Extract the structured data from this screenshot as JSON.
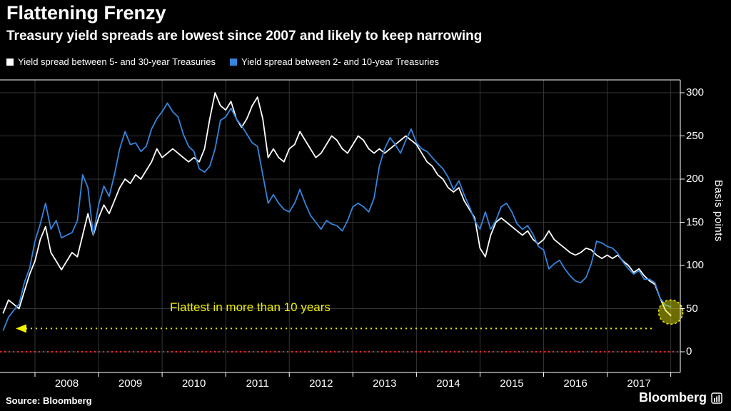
{
  "header": {
    "title": "Flattening Frenzy",
    "subtitle": "Treasury yield spreads are lowest since 2007 and likely to keep narrowing"
  },
  "legend": {
    "items": [
      {
        "label": "Yield spread between 5- and 30-year Treasuries",
        "color": "#ffffff"
      },
      {
        "label": "Yield spread between 2- and 10-year Treasuries",
        "color": "#3585dc"
      }
    ]
  },
  "footer": {
    "source": "Source: Bloomberg",
    "brand": "Bloomberg",
    "brand_icon": "bar-chart-icon"
  },
  "chart_data": {
    "type": "line",
    "title": "Flattening Frenzy",
    "subtitle": "Treasury yield spreads are lowest since 2007 and likely to keep narrowing",
    "xlabel": "",
    "ylabel": "Basis points",
    "x_unit": "year (monthly samples, Jul 2007 - Jan 2018)",
    "x_start": 2007.5,
    "x_step": 0.0833333,
    "xlim": [
      2007.45,
      2018.15
    ],
    "ylim": [
      -24,
      315
    ],
    "y_ticks": [
      0,
      50,
      100,
      150,
      200,
      250,
      300
    ],
    "x_gridlines": [
      2008,
      2009,
      2010,
      2011,
      2012,
      2013,
      2014,
      2015,
      2016,
      2017,
      2018
    ],
    "x_tick_labels": [
      2008,
      2009,
      2010,
      2011,
      2012,
      2013,
      2014,
      2015,
      2016,
      2017
    ],
    "grid": true,
    "grid_color": "#343434",
    "axis_color": "#ffffff",
    "legend_position": "top-left",
    "zero_line": {
      "y": 0,
      "color": "#ff2a2a",
      "style": "dotted"
    },
    "annotation": {
      "text": "Flattest in more than 10 years",
      "color": "#f0f000",
      "arrow_bps": 27,
      "highlight": {
        "x": 2018.0,
        "y_bps": 46
      }
    },
    "series": [
      {
        "name": "Yield spread between 5- and 30-year Treasuries",
        "color": "#ffffff",
        "values": [
          45,
          60,
          55,
          50,
          70,
          90,
          105,
          130,
          145,
          115,
          105,
          95,
          105,
          115,
          110,
          135,
          160,
          135,
          155,
          170,
          160,
          175,
          190,
          200,
          195,
          205,
          200,
          210,
          220,
          235,
          225,
          230,
          235,
          230,
          225,
          220,
          225,
          220,
          235,
          270,
          300,
          285,
          280,
          290,
          270,
          260,
          270,
          285,
          295,
          270,
          225,
          235,
          225,
          220,
          235,
          240,
          255,
          245,
          235,
          225,
          230,
          240,
          250,
          245,
          235,
          230,
          240,
          250,
          245,
          235,
          230,
          235,
          230,
          235,
          240,
          245,
          250,
          245,
          240,
          230,
          220,
          215,
          205,
          200,
          190,
          185,
          190,
          175,
          165,
          155,
          120,
          110,
          135,
          150,
          155,
          150,
          145,
          140,
          135,
          140,
          130,
          125,
          130,
          140,
          130,
          125,
          120,
          115,
          112,
          115,
          120,
          118,
          112,
          108,
          112,
          108,
          112,
          105,
          100,
          92,
          96,
          88,
          82,
          78,
          62,
          48,
          42
        ]
      },
      {
        "name": "Yield spread between 2- and 10-year Treasuries",
        "color": "#3585dc",
        "values": [
          25,
          40,
          48,
          55,
          80,
          97,
          128,
          148,
          172,
          142,
          152,
          132,
          135,
          138,
          152,
          205,
          190,
          135,
          170,
          192,
          180,
          205,
          235,
          255,
          240,
          242,
          232,
          238,
          258,
          270,
          278,
          288,
          278,
          272,
          252,
          238,
          232,
          212,
          208,
          215,
          235,
          268,
          272,
          282,
          270,
          262,
          252,
          242,
          238,
          205,
          172,
          182,
          172,
          165,
          162,
          172,
          188,
          172,
          158,
          150,
          142,
          152,
          148,
          146,
          140,
          152,
          168,
          172,
          168,
          162,
          178,
          215,
          235,
          248,
          240,
          230,
          245,
          258,
          242,
          235,
          232,
          225,
          218,
          212,
          202,
          188,
          198,
          182,
          168,
          152,
          142,
          162,
          142,
          152,
          168,
          172,
          162,
          148,
          142,
          146,
          136,
          122,
          118,
          96,
          102,
          106,
          96,
          88,
          82,
          80,
          86,
          102,
          128,
          126,
          122,
          120,
          114,
          104,
          96,
          90,
          94,
          84,
          84,
          80,
          62,
          54,
          52
        ]
      }
    ]
  }
}
